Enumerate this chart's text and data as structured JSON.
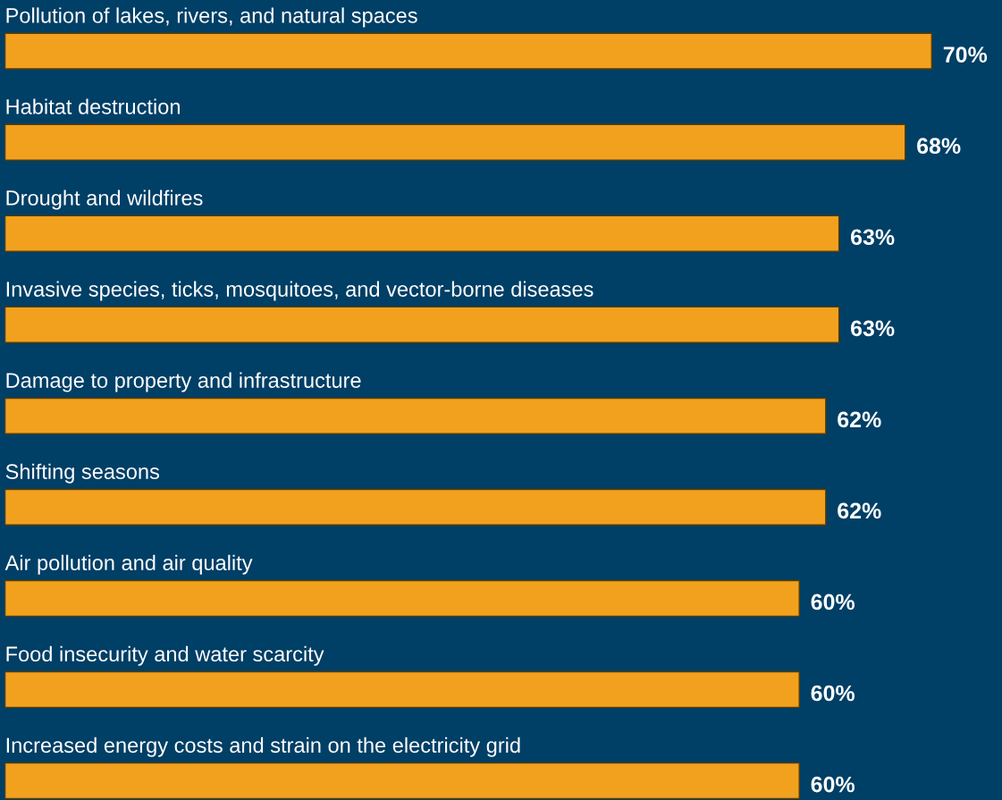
{
  "chart_data": {
    "type": "bar",
    "orientation": "horizontal",
    "categories": [
      "Pollution of lakes, rivers, and natural spaces",
      "Habitat destruction",
      "Drought and wildfires",
      "Invasive species, ticks, mosquitoes, and vector-borne diseases",
      "Damage to property and infrastructure",
      "Shifting seasons",
      "Air pollution and air quality",
      "Food insecurity and water scarcity",
      "Increased energy costs and strain on the electricity grid"
    ],
    "values": [
      70,
      68,
      63,
      63,
      62,
      62,
      60,
      60,
      60
    ],
    "value_labels": [
      "70%",
      "68%",
      "63%",
      "63%",
      "62%",
      "62%",
      "60%",
      "60%",
      "60%"
    ],
    "color": "#f2a11f"
  }
}
